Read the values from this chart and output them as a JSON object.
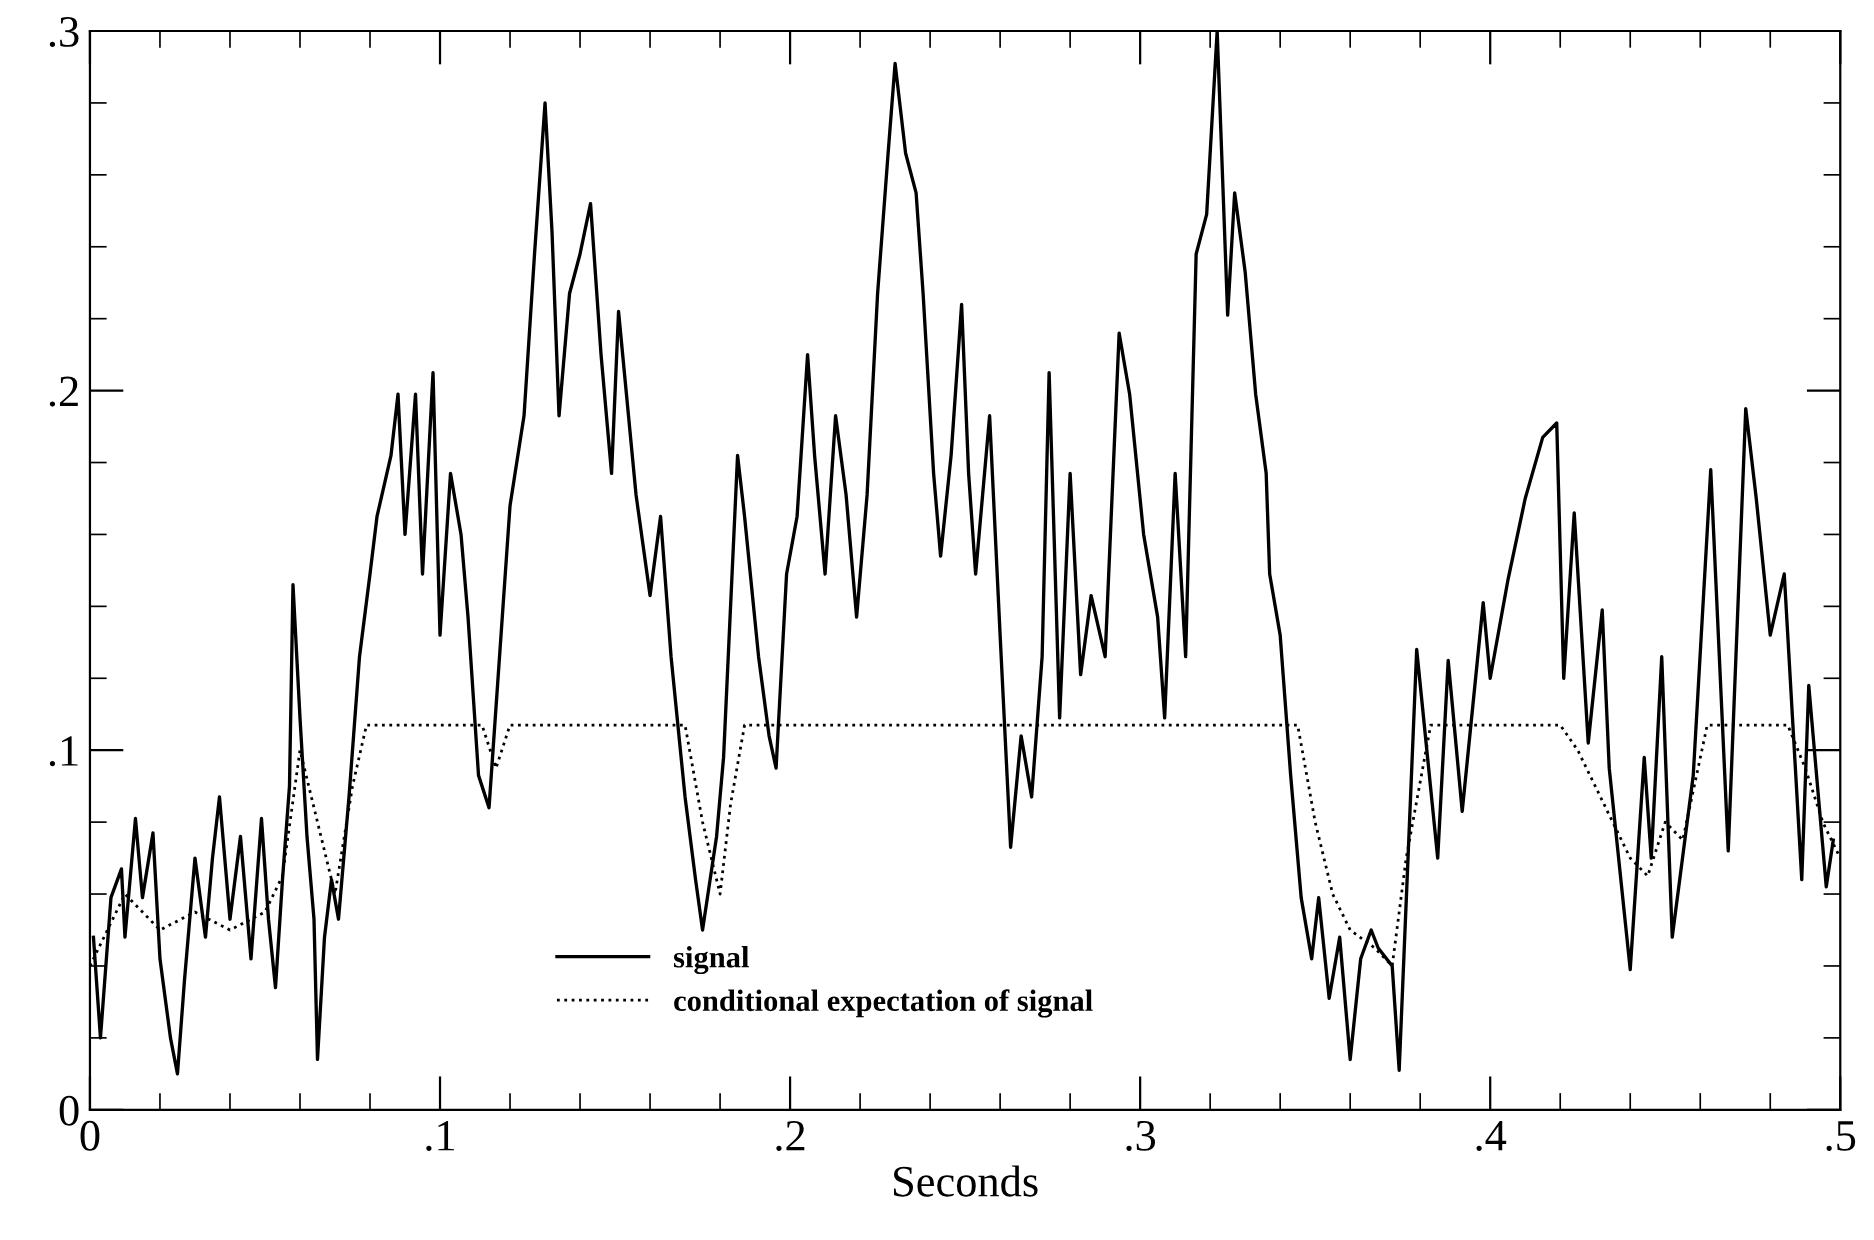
{
  "chart_data": {
    "type": "line",
    "xlabel": "Seconds",
    "xlim": [
      0,
      0.5
    ],
    "ylim": [
      0,
      0.3
    ],
    "xticks": [
      {
        "value": 0,
        "label": "0"
      },
      {
        "value": 0.02,
        "label": null
      },
      {
        "value": 0.04,
        "label": null
      },
      {
        "value": 0.06,
        "label": null
      },
      {
        "value": 0.08,
        "label": null
      },
      {
        "value": 0.1,
        "label": ".1"
      },
      {
        "value": 0.12,
        "label": null
      },
      {
        "value": 0.14,
        "label": null
      },
      {
        "value": 0.16,
        "label": null
      },
      {
        "value": 0.18,
        "label": null
      },
      {
        "value": 0.2,
        "label": ".2"
      },
      {
        "value": 0.22,
        "label": null
      },
      {
        "value": 0.24,
        "label": null
      },
      {
        "value": 0.26,
        "label": null
      },
      {
        "value": 0.28,
        "label": null
      },
      {
        "value": 0.3,
        "label": ".3"
      },
      {
        "value": 0.32,
        "label": null
      },
      {
        "value": 0.34,
        "label": null
      },
      {
        "value": 0.36,
        "label": null
      },
      {
        "value": 0.38,
        "label": null
      },
      {
        "value": 0.4,
        "label": ".4"
      },
      {
        "value": 0.42,
        "label": null
      },
      {
        "value": 0.44,
        "label": null
      },
      {
        "value": 0.46,
        "label": null
      },
      {
        "value": 0.48,
        "label": null
      },
      {
        "value": 0.5,
        "label": ".5"
      }
    ],
    "yticks": [
      {
        "value": 0,
        "label": "0"
      },
      {
        "value": 0.02,
        "label": null
      },
      {
        "value": 0.04,
        "label": null
      },
      {
        "value": 0.06,
        "label": null
      },
      {
        "value": 0.08,
        "label": null
      },
      {
        "value": 0.1,
        "label": ".1"
      },
      {
        "value": 0.12,
        "label": null
      },
      {
        "value": 0.14,
        "label": null
      },
      {
        "value": 0.16,
        "label": null
      },
      {
        "value": 0.18,
        "label": null
      },
      {
        "value": 0.2,
        "label": ".2"
      },
      {
        "value": 0.22,
        "label": null
      },
      {
        "value": 0.24,
        "label": null
      },
      {
        "value": 0.26,
        "label": null
      },
      {
        "value": 0.28,
        "label": null
      },
      {
        "value": 0.3,
        "label": ".3"
      }
    ],
    "grid": false,
    "legend": "bottom",
    "marker": "none",
    "series": [
      {
        "name": "signal",
        "color": "#000000",
        "line_style": "solid",
        "x": [
          0.001,
          0.003,
          0.006,
          0.009,
          0.01,
          0.013,
          0.015,
          0.018,
          0.02,
          0.023,
          0.025,
          0.027,
          0.03,
          0.033,
          0.035,
          0.037,
          0.04,
          0.043,
          0.046,
          0.049,
          0.051,
          0.053,
          0.055,
          0.057,
          0.058,
          0.06,
          0.062,
          0.064,
          0.065,
          0.067,
          0.069,
          0.071,
          0.074,
          0.077,
          0.08,
          0.082,
          0.086,
          0.088,
          0.09,
          0.093,
          0.095,
          0.098,
          0.1,
          0.103,
          0.106,
          0.108,
          0.111,
          0.114,
          0.117,
          0.12,
          0.124,
          0.127,
          0.13,
          0.132,
          0.134,
          0.137,
          0.14,
          0.143,
          0.146,
          0.149,
          0.151,
          0.156,
          0.16,
          0.163,
          0.166,
          0.17,
          0.173,
          0.175,
          0.179,
          0.181,
          0.185,
          0.187,
          0.191,
          0.194,
          0.196,
          0.199,
          0.202,
          0.205,
          0.207,
          0.21,
          0.213,
          0.216,
          0.219,
          0.222,
          0.225,
          0.228,
          0.23,
          0.233,
          0.236,
          0.238,
          0.241,
          0.243,
          0.246,
          0.249,
          0.251,
          0.253,
          0.257,
          0.26,
          0.263,
          0.266,
          0.269,
          0.272,
          0.274,
          0.277,
          0.28,
          0.283,
          0.286,
          0.29,
          0.294,
          0.297,
          0.301,
          0.305,
          0.307,
          0.31,
          0.313,
          0.316,
          0.319,
          0.322,
          0.325,
          0.327,
          0.33,
          0.333,
          0.336,
          0.337,
          0.34,
          0.343,
          0.346,
          0.349,
          0.351,
          0.354,
          0.357,
          0.36,
          0.363,
          0.366,
          0.368,
          0.372,
          0.374,
          0.379,
          0.385,
          0.388,
          0.392,
          0.398,
          0.4,
          0.405,
          0.41,
          0.415,
          0.419,
          0.421,
          0.424,
          0.428,
          0.432,
          0.434,
          0.44,
          0.444,
          0.446,
          0.449,
          0.452,
          0.458,
          0.463,
          0.468,
          0.473,
          0.476,
          0.48,
          0.484,
          0.489,
          0.491,
          0.496,
          0.498
        ],
        "values": [
          0.048,
          0.02,
          0.059,
          0.067,
          0.048,
          0.081,
          0.059,
          0.077,
          0.042,
          0.02,
          0.01,
          0.036,
          0.07,
          0.048,
          0.07,
          0.087,
          0.053,
          0.076,
          0.042,
          0.081,
          0.053,
          0.034,
          0.064,
          0.09,
          0.146,
          0.109,
          0.076,
          0.053,
          0.014,
          0.048,
          0.064,
          0.053,
          0.087,
          0.126,
          0.149,
          0.165,
          0.182,
          0.199,
          0.16,
          0.199,
          0.149,
          0.205,
          0.132,
          0.177,
          0.16,
          0.137,
          0.093,
          0.084,
          0.126,
          0.168,
          0.193,
          0.238,
          0.28,
          0.244,
          0.193,
          0.227,
          0.238,
          0.252,
          0.21,
          0.177,
          0.222,
          0.171,
          0.143,
          0.165,
          0.126,
          0.087,
          0.064,
          0.05,
          0.076,
          0.098,
          0.182,
          0.165,
          0.126,
          0.104,
          0.095,
          0.149,
          0.165,
          0.21,
          0.182,
          0.149,
          0.193,
          0.171,
          0.137,
          0.171,
          0.227,
          0.266,
          0.291,
          0.266,
          0.255,
          0.227,
          0.177,
          0.154,
          0.182,
          0.224,
          0.177,
          0.149,
          0.193,
          0.132,
          0.073,
          0.104,
          0.087,
          0.126,
          0.205,
          0.109,
          0.177,
          0.121,
          0.143,
          0.126,
          0.216,
          0.199,
          0.16,
          0.137,
          0.109,
          0.177,
          0.126,
          0.238,
          0.249,
          0.3,
          0.221,
          0.255,
          0.233,
          0.199,
          0.177,
          0.149,
          0.132,
          0.093,
          0.059,
          0.042,
          0.059,
          0.031,
          0.048,
          0.014,
          0.042,
          0.05,
          0.045,
          0.04,
          0.011,
          0.128,
          0.07,
          0.125,
          0.083,
          0.141,
          0.12,
          0.147,
          0.17,
          0.187,
          0.191,
          0.12,
          0.166,
          0.102,
          0.139,
          0.095,
          0.039,
          0.098,
          0.07,
          0.126,
          0.048,
          0.093,
          0.178,
          0.072,
          0.195,
          0.17,
          0.132,
          0.149,
          0.064,
          0.118,
          0.062,
          0.075
        ]
      },
      {
        "name": "conditional expectation of signal",
        "color": "#000000",
        "line_style": "dotted",
        "x": [
          0,
          0.01,
          0.02,
          0.03,
          0.04,
          0.05,
          0.055,
          0.06,
          0.065,
          0.07,
          0.075,
          0.079,
          0.112,
          0.116,
          0.12,
          0.17,
          0.175,
          0.18,
          0.183,
          0.187,
          0.345,
          0.35,
          0.355,
          0.36,
          0.367,
          0.372,
          0.376,
          0.383,
          0.42,
          0.425,
          0.43,
          0.435,
          0.44,
          0.445,
          0.45,
          0.455,
          0.462,
          0.485,
          0.49,
          0.495,
          0.5
        ],
        "values": [
          0.04,
          0.06,
          0.05,
          0.055,
          0.05,
          0.055,
          0.065,
          0.1,
          0.08,
          0.06,
          0.09,
          0.107,
          0.107,
          0.095,
          0.107,
          0.107,
          0.08,
          0.06,
          0.085,
          0.107,
          0.107,
          0.08,
          0.06,
          0.05,
          0.045,
          0.04,
          0.07,
          0.107,
          0.107,
          0.1,
          0.09,
          0.08,
          0.07,
          0.065,
          0.08,
          0.075,
          0.107,
          0.107,
          0.095,
          0.08,
          0.07
        ]
      }
    ]
  }
}
